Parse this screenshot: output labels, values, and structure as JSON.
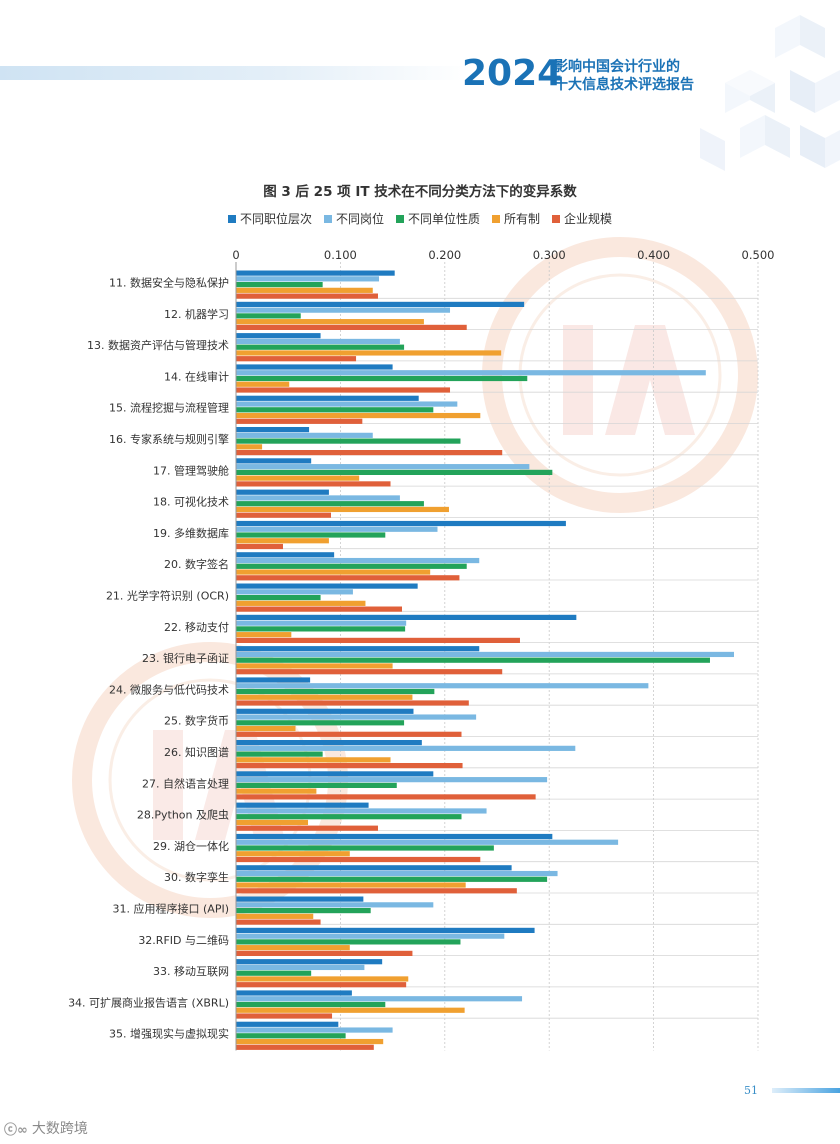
{
  "header": {
    "year": "2024",
    "title_line1": "影响中国会计行业的",
    "title_line2": "十大信息技术评选报告"
  },
  "chart_data": {
    "type": "bar",
    "orientation": "horizontal",
    "title": "图 3  后 25 项 IT 技术在不同分类方法下的变异系数",
    "xlim": [
      0,
      0.5
    ],
    "x_ticks": [
      "0",
      "0.100",
      "0.200",
      "0.300",
      "0.400",
      "0.500"
    ],
    "legend_position": "top",
    "categories": [
      "11. 数据安全与隐私保护",
      "12. 机器学习",
      "13. 数据资产评估与管理技术",
      "14. 在线审计",
      "15. 流程挖掘与流程管理",
      "16. 专家系统与规则引擎",
      "17. 管理驾驶舱",
      "18. 可视化技术",
      "19. 多维数据库",
      "20. 数字签名",
      "21. 光学字符识别 (OCR)",
      "22. 移动支付",
      "23. 银行电子函证",
      "24. 微服务与低代码技术",
      "25. 数字货币",
      "26. 知识图谱",
      "27. 自然语言处理",
      "28.Python 及爬虫",
      "29. 湖仓一体化",
      "30. 数字孪生",
      "31. 应用程序接口 (API)",
      "32.RFID 与二维码",
      "33. 移动互联网",
      "34. 可扩展商业报告语言 (XBRL)",
      "35. 增强现实与虚拟现实"
    ],
    "series": [
      {
        "name": "不同职位层次",
        "color": "#1f7bc1",
        "values": [
          0.152,
          0.276,
          0.081,
          0.15,
          0.175,
          0.07,
          0.072,
          0.089,
          0.316,
          0.094,
          0.174,
          0.326,
          0.233,
          0.071,
          0.17,
          0.178,
          0.189,
          0.127,
          0.303,
          0.264,
          0.122,
          0.286,
          0.14,
          0.111,
          0.098
        ]
      },
      {
        "name": "不同岗位",
        "color": "#7ab8e2",
        "values": [
          0.137,
          0.205,
          0.157,
          0.45,
          0.212,
          0.131,
          0.281,
          0.157,
          0.193,
          0.233,
          0.112,
          0.163,
          0.477,
          0.395,
          0.23,
          0.325,
          0.298,
          0.24,
          0.366,
          0.308,
          0.189,
          0.257,
          0.123,
          0.274,
          0.15
        ]
      },
      {
        "name": "不同单位性质",
        "color": "#23a35a",
        "values": [
          0.083,
          0.062,
          0.161,
          0.279,
          0.189,
          0.215,
          0.303,
          0.18,
          0.143,
          0.221,
          0.081,
          0.162,
          0.454,
          0.19,
          0.161,
          0.083,
          0.154,
          0.216,
          0.247,
          0.298,
          0.129,
          0.215,
          0.072,
          0.143,
          0.105
        ]
      },
      {
        "name": "所有制",
        "color": "#f0a030",
        "values": [
          0.131,
          0.18,
          0.254,
          0.051,
          0.234,
          0.025,
          0.118,
          0.204,
          0.089,
          0.186,
          0.124,
          0.053,
          0.15,
          0.169,
          0.057,
          0.148,
          0.077,
          0.069,
          0.109,
          0.22,
          0.074,
          0.109,
          0.165,
          0.219,
          0.141
        ]
      },
      {
        "name": "企业规模",
        "color": "#e0603a",
        "values": [
          0.136,
          0.221,
          0.115,
          0.205,
          0.121,
          0.255,
          0.148,
          0.091,
          0.045,
          0.214,
          0.159,
          0.272,
          0.255,
          0.223,
          0.216,
          0.217,
          0.287,
          0.136,
          0.234,
          0.269,
          0.081,
          0.169,
          0.163,
          0.092,
          0.132
        ]
      }
    ]
  },
  "footer": {
    "page_number": "51",
    "brand": "大数跨境"
  }
}
